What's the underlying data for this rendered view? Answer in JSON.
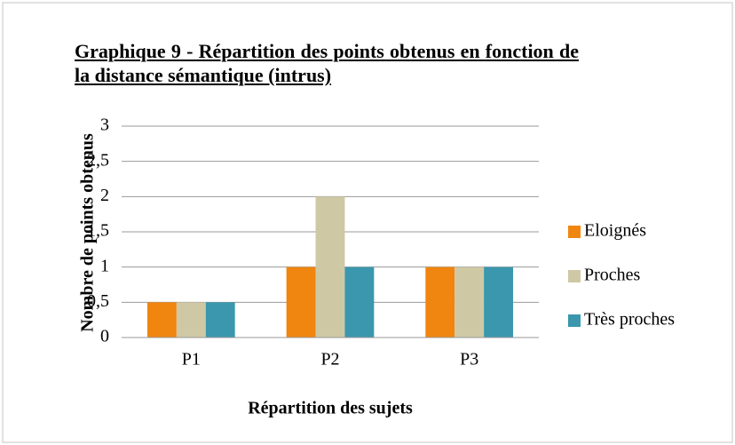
{
  "chart_data": {
    "type": "bar",
    "title": "Graphique 9 - Répartition des points obtenus en fonction de la distance sémantique (intrus)",
    "x_label": "Répartition des sujets",
    "y_label": "Nombre de points obtenus",
    "categories": [
      "P1",
      "P2",
      "P3"
    ],
    "series": [
      {
        "name": "Eloignés",
        "color": "#f0850f",
        "values": [
          0.5,
          1,
          1
        ]
      },
      {
        "name": "Proches",
        "color": "#cfc8a5",
        "values": [
          0.5,
          2,
          1
        ]
      },
      {
        "name": "Très proches",
        "color": "#3a97ad",
        "values": [
          0.5,
          1,
          1
        ]
      }
    ],
    "ylim": [
      0,
      3
    ],
    "yticks": [
      0,
      {
        "value": 0.5,
        "label": "0,5"
      },
      1,
      {
        "value": 1.5,
        "label": "1,5"
      },
      2,
      {
        "value": 2.5,
        "label": "2,5"
      },
      3
    ],
    "grid": true,
    "legend": "right"
  }
}
